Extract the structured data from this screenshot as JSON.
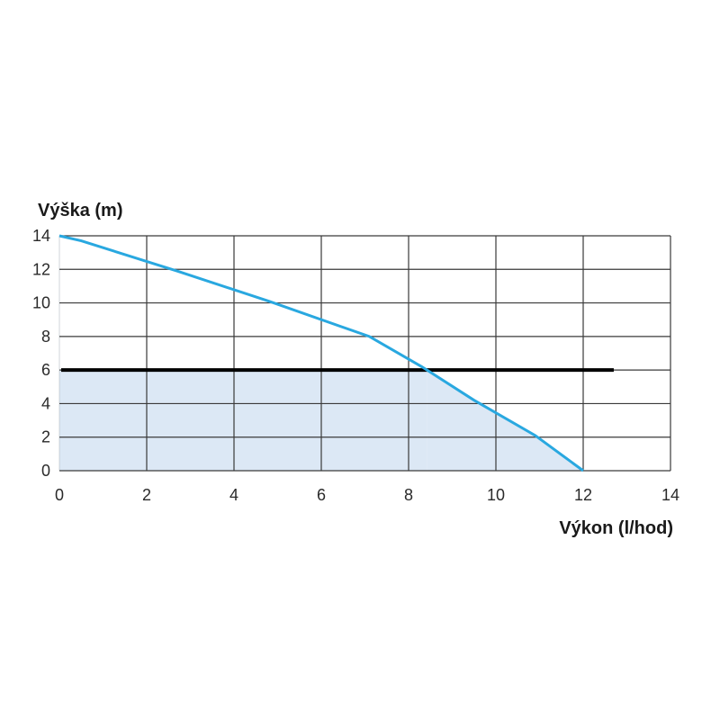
{
  "chart_data": {
    "type": "line",
    "ylabel": "Výška (m)",
    "xlabel": "Výkon (l/hod)",
    "xlim": [
      0,
      14
    ],
    "ylim": [
      0,
      14
    ],
    "x_ticks": [
      "0",
      "2",
      "4",
      "6",
      "8",
      "10",
      "12",
      "14"
    ],
    "y_ticks": [
      "0",
      "2",
      "4",
      "6",
      "8",
      "10",
      "12",
      "14"
    ],
    "grid": true,
    "legend": "none",
    "series": [
      {
        "color": "#29a8e0",
        "x": [
          0,
          0.5,
          2.7,
          4.8,
          7.1,
          8.3,
          9.5,
          10.9,
          12.0
        ],
        "y": [
          14,
          13.7,
          11.9,
          10.1,
          8.0,
          6.2,
          4.2,
          2.1,
          0
        ]
      }
    ],
    "reference_line": {
      "y": 6,
      "x_range": [
        0,
        12.7
      ],
      "color": "#000000"
    },
    "shaded_region": {
      "color": "#dce8f5",
      "max_y": 6
    }
  }
}
